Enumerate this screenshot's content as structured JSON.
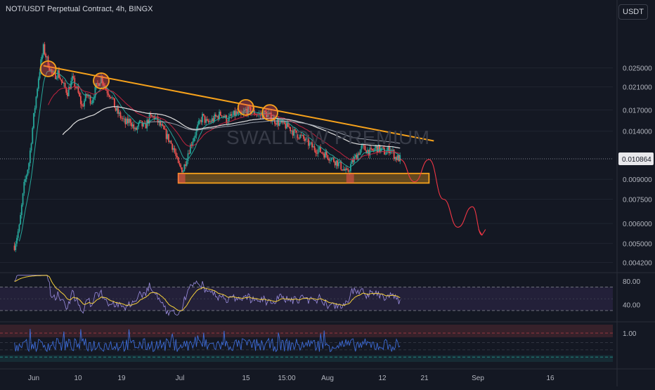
{
  "header": {
    "title": "NOT/USDT Perpetual Contract, 4h, BINGX",
    "currency_button": "USDT",
    "watermark": "SWALLOW PREMIUM"
  },
  "colors": {
    "background": "#141823",
    "up": "#26a69a",
    "down": "#ef5350",
    "trendline": "#f7a21b",
    "zone": "#f7a21b",
    "forecast": "#f23645",
    "ema_fast": "#26a69a",
    "ema_mid": "#c2243f",
    "ma_slow": "#e0e0e0",
    "rsi": "#9c8ee0",
    "rsi_ma": "#f7d23c",
    "osc": "#3d6bd6"
  },
  "chart_data": [
    {
      "type": "candlestick",
      "title": "NOT/USDT Perpetual Contract, 4h, BINGX",
      "y_scale": "log",
      "y_ticks": [
        "0.025000",
        "0.021000",
        "0.017000",
        "0.014000",
        "0.009000",
        "0.007500",
        "0.006000",
        "0.005000",
        "0.004200"
      ],
      "y_tick_values": [
        0.025,
        0.021,
        0.017,
        0.014,
        0.009,
        0.0075,
        0.006,
        0.005,
        0.0042
      ],
      "last_price": "0.010864",
      "x_ticks": [
        "Jun",
        "10",
        "19",
        "Jul",
        "15",
        "15:00",
        "Aug",
        "12",
        "21",
        "Sep",
        "16"
      ],
      "ylim": [
        0.0039,
        0.036
      ],
      "path_points": [
        [
          "2024-05-28",
          0.0049
        ],
        [
          "2024-05-29",
          0.0058
        ],
        [
          "2024-05-30",
          0.0085
        ],
        [
          "2024-05-31",
          0.0105
        ],
        [
          "2024-06-01",
          0.016
        ],
        [
          "2024-06-02",
          0.023
        ],
        [
          "2024-06-03",
          0.03
        ],
        [
          "2024-06-04",
          0.026
        ],
        [
          "2024-06-05",
          0.023
        ],
        [
          "2024-06-06",
          0.024
        ],
        [
          "2024-06-07",
          0.0215
        ],
        [
          "2024-06-08",
          0.02
        ],
        [
          "2024-06-09",
          0.0225
        ],
        [
          "2024-06-10",
          0.0205
        ],
        [
          "2024-06-11",
          0.0175
        ],
        [
          "2024-06-12",
          0.0195
        ],
        [
          "2024-06-13",
          0.0185
        ],
        [
          "2024-06-14",
          0.021
        ],
        [
          "2024-06-15",
          0.023
        ],
        [
          "2024-06-16",
          0.0205
        ],
        [
          "2024-06-17",
          0.0195
        ],
        [
          "2024-06-18",
          0.017
        ],
        [
          "2024-06-19",
          0.016
        ],
        [
          "2024-06-20",
          0.015
        ],
        [
          "2024-06-21",
          0.0155
        ],
        [
          "2024-06-22",
          0.014
        ],
        [
          "2024-06-23",
          0.015
        ],
        [
          "2024-06-24",
          0.0145
        ],
        [
          "2024-06-25",
          0.0158
        ],
        [
          "2024-06-26",
          0.016
        ],
        [
          "2024-06-27",
          0.015
        ],
        [
          "2024-06-28",
          0.014
        ],
        [
          "2024-06-29",
          0.013
        ],
        [
          "2024-06-30",
          0.012
        ],
        [
          "2024-07-01",
          0.0102
        ],
        [
          "2024-07-02",
          0.0098
        ],
        [
          "2024-07-03",
          0.0115
        ],
        [
          "2024-07-04",
          0.013
        ],
        [
          "2024-07-05",
          0.0145
        ],
        [
          "2024-07-06",
          0.016
        ],
        [
          "2024-07-07",
          0.015
        ],
        [
          "2024-07-08",
          0.0155
        ],
        [
          "2024-07-09",
          0.016
        ],
        [
          "2024-07-10",
          0.0165
        ],
        [
          "2024-07-11",
          0.0155
        ],
        [
          "2024-07-12",
          0.016
        ],
        [
          "2024-07-13",
          0.0165
        ],
        [
          "2024-07-14",
          0.016
        ],
        [
          "2024-07-15",
          0.017
        ],
        [
          "2024-07-16",
          0.0168
        ],
        [
          "2024-07-17",
          0.0165
        ],
        [
          "2024-07-18",
          0.0162
        ],
        [
          "2024-07-19",
          0.0165
        ],
        [
          "2024-07-20",
          0.016
        ],
        [
          "2024-07-21",
          0.0155
        ],
        [
          "2024-07-22",
          0.015
        ],
        [
          "2024-07-23",
          0.0148
        ],
        [
          "2024-07-24",
          0.0145
        ],
        [
          "2024-07-25",
          0.0138
        ],
        [
          "2024-07-26",
          0.0135
        ],
        [
          "2024-07-27",
          0.013
        ],
        [
          "2024-07-28",
          0.0125
        ],
        [
          "2024-07-29",
          0.012
        ],
        [
          "2024-07-30",
          0.0118
        ],
        [
          "2024-07-31",
          0.0115
        ],
        [
          "2024-08-01",
          0.0112
        ],
        [
          "2024-08-02",
          0.0108
        ],
        [
          "2024-08-03",
          0.0105
        ],
        [
          "2024-08-04",
          0.01
        ],
        [
          "2024-08-05",
          0.0095
        ],
        [
          "2024-08-06",
          0.0105
        ],
        [
          "2024-08-07",
          0.0112
        ],
        [
          "2024-08-08",
          0.012
        ],
        [
          "2024-08-09",
          0.0118
        ],
        [
          "2024-08-10",
          0.0115
        ],
        [
          "2024-08-11",
          0.012
        ],
        [
          "2024-08-12",
          0.0118
        ],
        [
          "2024-08-13",
          0.0115
        ],
        [
          "2024-08-14",
          0.012
        ],
        [
          "2024-08-15",
          0.011
        ],
        [
          "2024-08-16",
          0.01086
        ]
      ],
      "trendline": [
        [
          "2024-06-03",
          0.0255
        ],
        [
          "2024-08-23",
          0.0128
        ]
      ],
      "touch_points": [
        [
          "2024-06-04",
          0.0248
        ],
        [
          "2024-06-15",
          0.0222
        ],
        [
          "2024-07-15",
          0.0174
        ],
        [
          "2024-07-20",
          0.0166
        ]
      ],
      "support_zone": {
        "from": "2024-07-01",
        "to": "2024-08-22",
        "low": 0.0087,
        "high": 0.0095
      },
      "forecast_path": [
        [
          "2024-08-16",
          0.0108
        ],
        [
          "2024-08-19",
          0.0088
        ],
        [
          "2024-08-22",
          0.0108
        ],
        [
          "2024-08-25",
          0.0075
        ],
        [
          "2024-08-28",
          0.0058
        ],
        [
          "2024-08-31",
          0.007
        ],
        [
          "2024-09-02",
          0.0054
        ]
      ]
    },
    {
      "type": "line",
      "name": "RSI panel",
      "y_ticks": [
        "80.00",
        "40.00"
      ],
      "y_tick_values": [
        80,
        40
      ],
      "bands": [
        70,
        30
      ]
    },
    {
      "type": "line",
      "name": "Oscillator panel",
      "y_ticks": [
        "1.00"
      ],
      "y_tick_values": [
        1
      ]
    }
  ]
}
